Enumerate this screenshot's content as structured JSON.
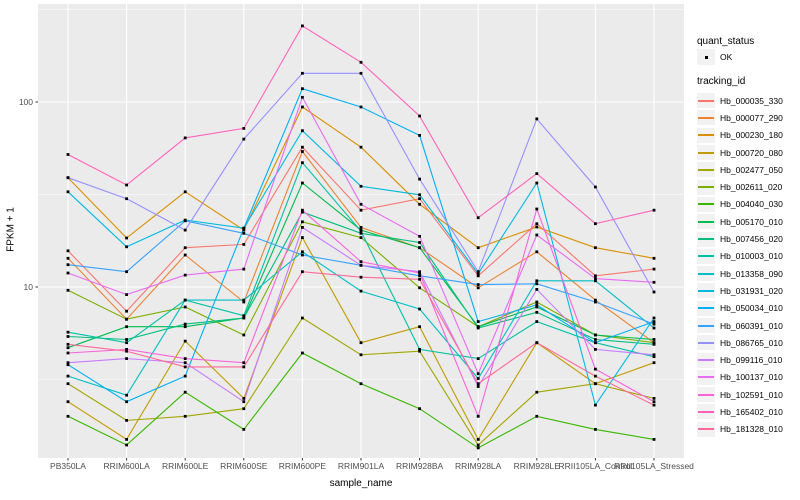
{
  "figure": {
    "background": "#FFFFFF",
    "panel_background": "#EBEBEB",
    "gridline_color": "#FFFFFF",
    "tick_label_color": "#4D4D4D",
    "point_color": "#000000",
    "legend_key_fill": "#F2F2F2"
  },
  "legend": {
    "quant_status": {
      "title": "quant_status",
      "items": [
        {
          "label": "OK",
          "marker": "black-point"
        }
      ]
    },
    "tracking_id": {
      "title": "tracking_id"
    }
  },
  "chart_data": {
    "type": "line",
    "title": "",
    "xlabel": "sample_name",
    "ylabel": "FPKM + 1",
    "y_scale": "log10",
    "ylim": [
      1.19,
      339
    ],
    "y_tick_labels": [
      {
        "label": "100",
        "value": 100
      },
      {
        "label": "10",
        "value": 10
      }
    ],
    "y_minor_gridlines": [
      316.2,
      31.62,
      3.162
    ],
    "grid": "on",
    "legend_position": "right",
    "marker": "small-black-square (quant_status = OK)",
    "categories": [
      "PB350LA",
      "RRIM600LA",
      "RRIM600LE",
      "RRIM600SE",
      "RRIM600PE",
      "RRIM901LA",
      "RRIM928BA",
      "RRIM928LA",
      "RRIM928LE",
      "RRII105LA_Control",
      "RRII105LA_Stressed"
    ],
    "series": [
      {
        "name": "Hb_000035_330",
        "color": "#F8766D",
        "values": [
          15.7,
          7.4,
          16.3,
          17.0,
          57.0,
          26.0,
          30.0,
          11.5,
          22.0,
          11.5,
          12.5
        ]
      },
      {
        "name": "Hb_000077_290",
        "color": "#EA8331",
        "values": [
          14.3,
          6.7,
          14.9,
          8.3,
          54.0,
          21.0,
          16.3,
          9.9,
          15.5,
          8.5,
          5.0
        ]
      },
      {
        "name": "Hb_000230_180",
        "color": "#D89000",
        "values": [
          39.0,
          18.4,
          32.7,
          20.3,
          94.0,
          57.0,
          28.0,
          16.3,
          21.1,
          16.3,
          14.3
        ]
      },
      {
        "name": "Hb_000720_080",
        "color": "#C09B00",
        "values": [
          2.4,
          1.5,
          5.1,
          2.5,
          18.5,
          5.0,
          6.1,
          1.5,
          5.0,
          3.0,
          3.9
        ]
      },
      {
        "name": "Hb_002477_050",
        "color": "#A3A500",
        "values": [
          3.0,
          1.9,
          2.0,
          2.2,
          6.8,
          4.3,
          4.5,
          1.4,
          2.7,
          3.0,
          2.5
        ]
      },
      {
        "name": "Hb_002611_020",
        "color": "#7CAE00",
        "values": [
          9.6,
          6.7,
          7.8,
          5.5,
          22.5,
          18.5,
          9.9,
          6.1,
          8.3,
          5.5,
          5.0
        ]
      },
      {
        "name": "Hb_004040_030",
        "color": "#39B600",
        "values": [
          2.0,
          1.4,
          2.7,
          1.7,
          4.4,
          3.0,
          2.2,
          1.35,
          2.0,
          1.7,
          1.5
        ]
      },
      {
        "name": "Hb_005170_010",
        "color": "#00BB4E",
        "values": [
          4.7,
          6.1,
          6.1,
          6.8,
          36.5,
          20.3,
          16.3,
          6.1,
          7.8,
          5.5,
          5.2
        ]
      },
      {
        "name": "Hb_007456_020",
        "color": "#00BF7D",
        "values": [
          5.4,
          5.2,
          6.3,
          6.8,
          25.4,
          19.5,
          17.4,
          6.0,
          7.3,
          5.2,
          4.9
        ]
      },
      {
        "name": "Hb_010003_010",
        "color": "#00C1A3",
        "values": [
          5.7,
          5.0,
          8.5,
          7.0,
          47.0,
          20.0,
          4.6,
          4.1,
          6.5,
          5.0,
          4.2
        ]
      },
      {
        "name": "Hb_013358_090",
        "color": "#00BFC4",
        "values": [
          3.3,
          2.6,
          8.5,
          8.5,
          15.5,
          9.5,
          7.6,
          3.2,
          10.8,
          10.8,
          6.0
        ]
      },
      {
        "name": "Hb_031931_020",
        "color": "#00BAE0",
        "values": [
          32.7,
          16.5,
          23.0,
          20.8,
          70.0,
          35.0,
          31.5,
          11.8,
          36.5,
          2.3,
          6.8
        ]
      },
      {
        "name": "Hb_050034_010",
        "color": "#00B0F6",
        "values": [
          3.8,
          2.4,
          3.3,
          20.8,
          118.0,
          94.0,
          66.0,
          6.5,
          8.0,
          5.0,
          6.5
        ]
      },
      {
        "name": "Hb_060391_010",
        "color": "#35A2FF",
        "values": [
          13.2,
          12.1,
          22.8,
          19.5,
          14.9,
          13.1,
          11.5,
          10.3,
          10.4,
          8.3,
          6.3
        ]
      },
      {
        "name": "Hb_086765_010",
        "color": "#9590FF",
        "values": [
          39.0,
          30.0,
          20.3,
          63.0,
          143.0,
          143.0,
          38.3,
          12.1,
          81.0,
          34.7,
          9.4
        ]
      },
      {
        "name": "Hb_099116_010",
        "color": "#C77CFF",
        "values": [
          3.9,
          4.1,
          3.9,
          2.4,
          21.0,
          13.1,
          12.1,
          2.9,
          9.7,
          4.6,
          4.3
        ]
      },
      {
        "name": "Hb_100137_010",
        "color": "#E76BF3",
        "values": [
          11.9,
          9.1,
          11.6,
          12.5,
          106.0,
          28.0,
          18.8,
          3.4,
          19.1,
          11.1,
          10.6
        ]
      },
      {
        "name": "Hb_102591_010",
        "color": "#FA62DB",
        "values": [
          4.4,
          4.6,
          4.1,
          3.9,
          26.0,
          13.7,
          11.9,
          2.0,
          26.4,
          3.6,
          2.4
        ]
      },
      {
        "name": "Hb_165402_010",
        "color": "#FF62BC",
        "values": [
          52.0,
          35.6,
          64.0,
          72.0,
          258.0,
          164.0,
          84.0,
          23.7,
          41.0,
          22.0,
          26.0
        ]
      },
      {
        "name": "Hb_181328_010",
        "color": "#FF6A98",
        "values": [
          4.9,
          4.5,
          3.7,
          3.7,
          12.1,
          11.3,
          11.0,
          3.0,
          5.0,
          3.3,
          2.3
        ]
      }
    ]
  }
}
